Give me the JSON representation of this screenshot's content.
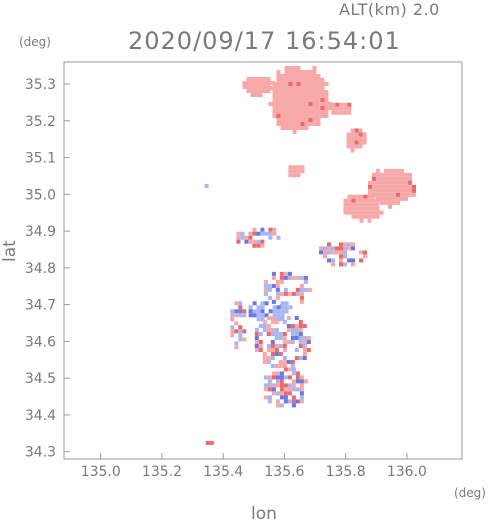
{
  "header": {
    "altitude_text": "ALT(km) 2.0",
    "datetime": "2020/09/17 16:54:01"
  },
  "chart_data": {
    "type": "heatmap",
    "title": "2020/09/17 16:54:01",
    "subtitle": "ALT(km) 2.0",
    "xlabel": "lon",
    "ylabel": "lat",
    "x_unit": "(deg)",
    "y_unit": "(deg)",
    "xlim": [
      134.88,
      136.18
    ],
    "ylim": [
      34.28,
      35.36
    ],
    "x_ticks": [
      "135.0",
      "135.2",
      "135.4",
      "135.6",
      "135.8",
      "136.0"
    ],
    "y_ticks": [
      "34.3",
      "34.4",
      "34.5",
      "34.6",
      "34.7",
      "34.8",
      "34.9",
      "35.0",
      "35.1",
      "35.2",
      "35.3"
    ],
    "grid": false,
    "colors": {
      "positive": "#f7a8a8",
      "strong_positive": "#e86a6a",
      "negative": "#a9b6f4",
      "strong_negative": "#6a78e6",
      "axis": "#9a9a9a"
    },
    "regions": [
      {
        "lon": [
          135.535,
          135.75
        ],
        "lat": [
          35.17,
          35.36
        ],
        "sign": "positive"
      },
      {
        "lon": [
          135.45,
          135.56
        ],
        "lat": [
          35.27,
          35.33
        ],
        "sign": "positive"
      },
      {
        "lon": [
          135.74,
          135.82
        ],
        "lat": [
          35.22,
          35.26
        ],
        "sign": "positive"
      },
      {
        "lon": [
          135.79,
          135.86
        ],
        "lat": [
          35.12,
          35.19
        ],
        "sign": "positive"
      },
      {
        "lon": [
          135.86,
          136.03
        ],
        "lat": [
          34.97,
          35.08
        ],
        "sign": "positive"
      },
      {
        "lon": [
          135.78,
          135.92
        ],
        "lat": [
          34.93,
          35.01
        ],
        "sign": "positive"
      },
      {
        "lon": [
          135.6,
          135.66
        ],
        "lat": [
          35.05,
          35.09
        ],
        "sign": "positive"
      },
      {
        "lon": [
          135.52,
          135.68
        ],
        "lat": [
          34.7,
          34.8
        ],
        "sign": "mixed"
      },
      {
        "lon": [
          135.47,
          135.62
        ],
        "lat": [
          34.66,
          34.72
        ],
        "sign": "negative"
      },
      {
        "lon": [
          135.49,
          135.68
        ],
        "lat": [
          34.53,
          34.68
        ],
        "sign": "mixed"
      },
      {
        "lon": [
          135.52,
          135.67
        ],
        "lat": [
          34.42,
          34.54
        ],
        "sign": "mixed"
      },
      {
        "lon": [
          135.33,
          135.37
        ],
        "lat": [
          34.32,
          34.34
        ],
        "sign": "strong_positive"
      },
      {
        "lon": [
          135.43,
          135.58
        ],
        "lat": [
          34.86,
          34.92
        ],
        "sign": "mixed"
      },
      {
        "lon": [
          135.7,
          135.86
        ],
        "lat": [
          34.81,
          34.88
        ],
        "sign": "mixed"
      },
      {
        "lon": [
          135.41,
          135.47
        ],
        "lat": [
          34.58,
          34.72
        ],
        "sign": "mixed"
      },
      {
        "lon": [
          135.3,
          135.35
        ],
        "lat": [
          35.02,
          35.05
        ],
        "sign": "negative"
      }
    ]
  }
}
